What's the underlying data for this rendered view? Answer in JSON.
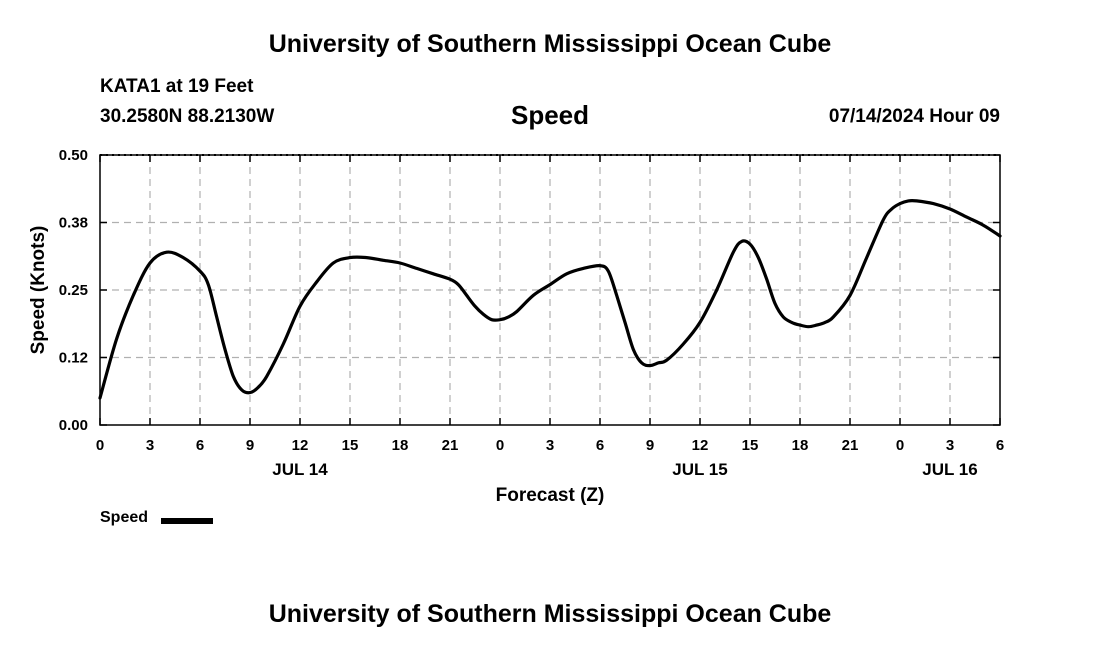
{
  "header": {
    "title": "University of Southern Mississippi Ocean Cube",
    "station": "KATA1 at 19 Feet",
    "coords": "30.2580N  88.2130W",
    "datetime": "07/14/2024 Hour 09"
  },
  "footer": {
    "title": "University of Southern Mississippi Ocean Cube"
  },
  "legend": {
    "label": "Speed",
    "color": "#000000"
  },
  "chart_data": {
    "type": "line",
    "title": "Speed",
    "xlabel": "Forecast (Z)",
    "ylabel": "Speed (Knots)",
    "ylim": [
      0,
      0.5
    ],
    "y_ticks": [
      "0.00",
      "0.12",
      "0.25",
      "0.38",
      "0.50"
    ],
    "xlim_hours": [
      0,
      54
    ],
    "x_tick_labels": [
      "0",
      "3",
      "6",
      "9",
      "12",
      "15",
      "18",
      "21",
      "0",
      "3",
      "6",
      "9",
      "12",
      "15",
      "18",
      "21",
      "0",
      "3",
      "6"
    ],
    "date_labels": [
      {
        "label": "JUL 14",
        "hour": 12
      },
      {
        "label": "JUL 15",
        "hour": 36
      },
      {
        "label": "JUL 16",
        "hour": 51
      }
    ],
    "grid": true,
    "legend_position": "bottom-left",
    "series": [
      {
        "name": "Speed",
        "color": "#000000",
        "x": [
          0,
          1,
          2,
          3,
          4,
          5,
          6,
          6.5,
          7,
          7.5,
          8,
          8.5,
          9,
          9.5,
          10,
          11,
          12,
          13,
          14,
          15,
          16,
          17,
          18,
          19,
          20,
          21,
          21.5,
          22,
          22.5,
          23,
          23.5,
          24,
          24.5,
          25,
          26,
          27,
          28,
          29,
          30,
          30.5,
          31,
          31.5,
          32,
          32.5,
          33,
          33.5,
          34,
          35,
          36,
          37,
          38,
          38.5,
          39,
          39.5,
          40,
          40.5,
          41,
          41.5,
          42,
          42.5,
          43,
          43.5,
          44,
          45,
          46,
          47,
          47.5,
          48,
          48.5,
          49,
          50,
          51,
          52,
          53,
          54
        ],
        "values": [
          0.05,
          0.16,
          0.24,
          0.3,
          0.32,
          0.31,
          0.285,
          0.26,
          0.2,
          0.14,
          0.09,
          0.065,
          0.06,
          0.07,
          0.09,
          0.15,
          0.22,
          0.265,
          0.3,
          0.31,
          0.31,
          0.305,
          0.3,
          0.29,
          0.28,
          0.27,
          0.26,
          0.24,
          0.22,
          0.205,
          0.195,
          0.195,
          0.2,
          0.21,
          0.24,
          0.26,
          0.28,
          0.29,
          0.295,
          0.285,
          0.24,
          0.19,
          0.14,
          0.115,
          0.11,
          0.115,
          0.12,
          0.15,
          0.19,
          0.25,
          0.32,
          0.34,
          0.335,
          0.31,
          0.27,
          0.225,
          0.2,
          0.19,
          0.185,
          0.182,
          0.185,
          0.19,
          0.2,
          0.24,
          0.31,
          0.38,
          0.4,
          0.41,
          0.415,
          0.415,
          0.41,
          0.4,
          0.385,
          0.37,
          0.35
        ]
      }
    ]
  }
}
